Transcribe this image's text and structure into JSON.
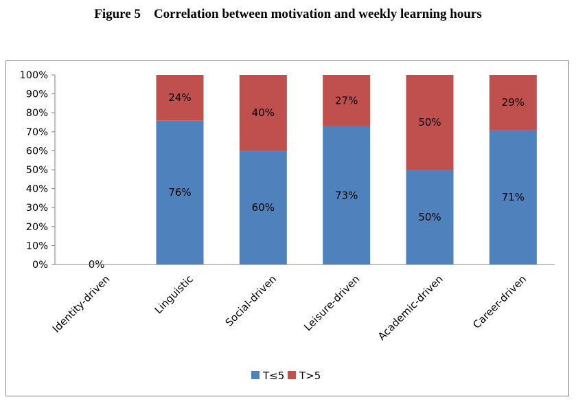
{
  "figure": {
    "title": "Figure 5    Correlation between motivation and weekly learning hours"
  },
  "chart_data": {
    "type": "bar",
    "stacked": true,
    "title": "",
    "xlabel": "",
    "ylabel": "",
    "ylim": [
      0,
      100
    ],
    "y_tick_format": "percent",
    "y_ticks": [
      0,
      10,
      20,
      30,
      40,
      50,
      60,
      70,
      80,
      90,
      100
    ],
    "categories": [
      "Identity-driven",
      "Linguistic",
      "Social-driven",
      "Leisure-driven",
      "Academic-driven",
      "Career-driven"
    ],
    "series": [
      {
        "name": "T≤5",
        "color": "#4f81bd",
        "values": [
          0,
          76,
          60,
          73,
          50,
          71
        ],
        "data_labels": [
          "0%",
          "76%",
          "60%",
          "73%",
          "50%",
          "71%"
        ]
      },
      {
        "name": "T>5",
        "color": "#c0504d",
        "values": [
          0,
          24,
          40,
          27,
          50,
          29
        ],
        "data_labels": [
          "",
          "24%",
          "40%",
          "27%",
          "50%",
          "29%"
        ]
      }
    ],
    "grid": false,
    "legend": "bottom"
  }
}
